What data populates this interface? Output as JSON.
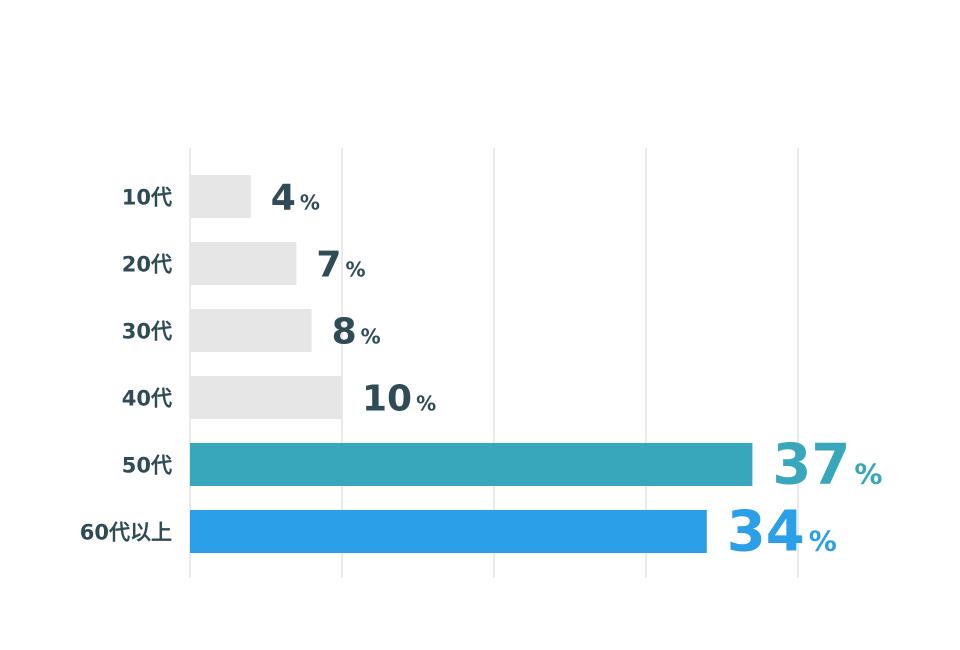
{
  "chart_data": {
    "type": "bar",
    "orientation": "horizontal",
    "categories": [
      "10代",
      "20代",
      "30代",
      "40代",
      "50代",
      "60代以上"
    ],
    "values": [
      4,
      7,
      8,
      10,
      37,
      34
    ],
    "value_suffix": "%",
    "xlim": [
      0,
      40
    ],
    "grid": true,
    "bar_colors": [
      "#e6e6e6",
      "#e6e6e6",
      "#e6e6e6",
      "#e6e6e6",
      "#38a6bb",
      "#2b9fe8"
    ],
    "label_colors": [
      "#2f4b55",
      "#2f4b55",
      "#2f4b55",
      "#2f4b55",
      "#38a6bb",
      "#2b9fe8"
    ],
    "category_label_color": "#2f4b55",
    "gridline_color": "#e3e3e3"
  }
}
